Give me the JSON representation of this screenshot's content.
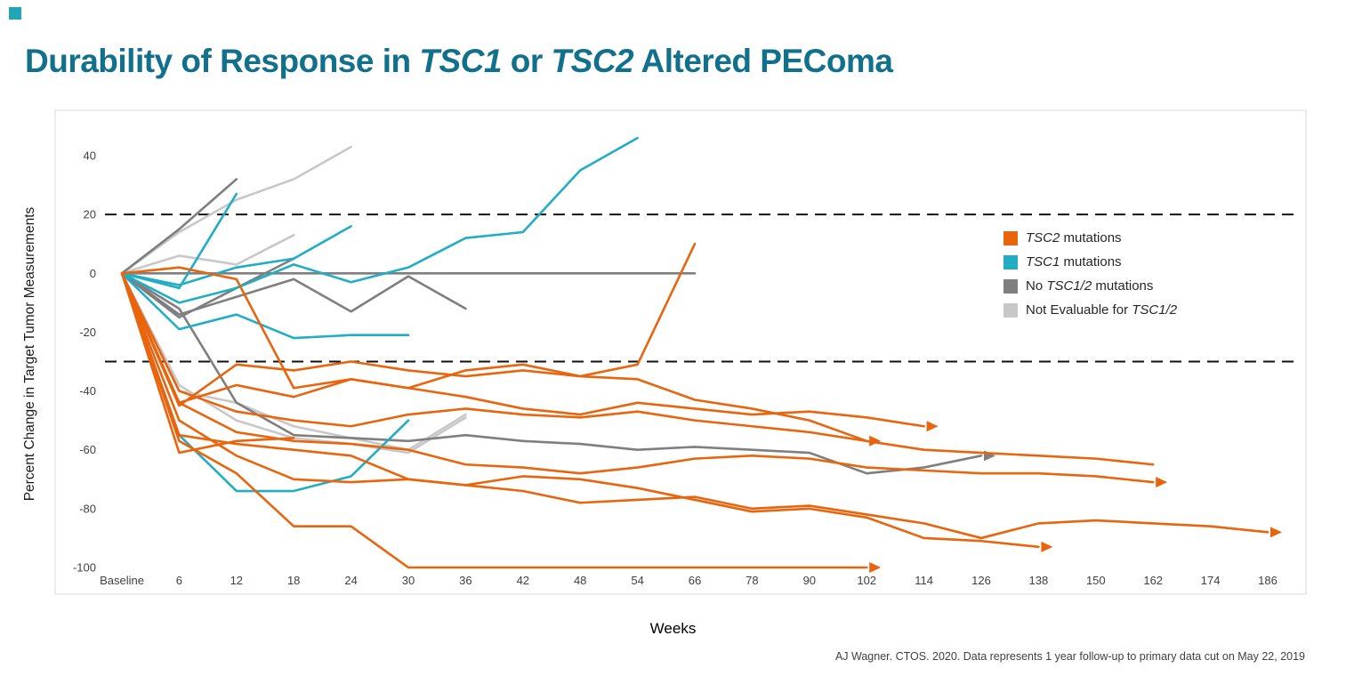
{
  "slide": {
    "title_segments": [
      {
        "text": "Durability of Response in ",
        "italic": false
      },
      {
        "text": "TSC1",
        "italic": true
      },
      {
        "text": " or ",
        "italic": false
      },
      {
        "text": "TSC2",
        "italic": true
      },
      {
        "text": " Altered PEComa",
        "italic": false
      }
    ],
    "title_color": "#11708C",
    "accent_color": "#23A5B8"
  },
  "footer": {
    "citation": "AJ Wagner. CTOS. 2020. Data represents 1 year follow-up to primary data cut on May 22, 2019"
  },
  "chart_data": {
    "type": "line",
    "title": "Durability of Response in TSC1 or TSC2 Altered PEComa",
    "xlabel": "Weeks",
    "ylabel": "Percent Change in Target Tumor Measurements",
    "x_tick_labels": [
      "Baseline",
      "6",
      "12",
      "18",
      "24",
      "30",
      "36",
      "42",
      "48",
      "54",
      "66",
      "78",
      "90",
      "102",
      "114",
      "126",
      "138",
      "150",
      "162",
      "174",
      "186"
    ],
    "y_ticks": [
      40,
      20,
      0,
      -20,
      -40,
      -60,
      -80,
      -100
    ],
    "ylim": [
      -105,
      50
    ],
    "reference_lines": [
      20,
      -30
    ],
    "grid": false,
    "legend_position": "right-inside",
    "colors": {
      "tsc2": "#E8650E",
      "tsc1": "#21AEC5",
      "no_mut": "#7F7F7F",
      "not_eval": "#C8C8C8"
    },
    "legend": [
      {
        "group": "tsc2",
        "segments": [
          {
            "text": "TSC2",
            "italic": true
          },
          {
            "text": " mutations",
            "italic": false
          }
        ]
      },
      {
        "group": "tsc1",
        "segments": [
          {
            "text": "TSC1",
            "italic": true
          },
          {
            "text": " mutations",
            "italic": false
          }
        ]
      },
      {
        "group": "no_mut",
        "segments": [
          {
            "text": "No ",
            "italic": false
          },
          {
            "text": "TSC1/2",
            "italic": true
          },
          {
            "text": " mutations",
            "italic": false
          }
        ]
      },
      {
        "group": "not_eval",
        "segments": [
          {
            "text": "Not Evaluable for ",
            "italic": false
          },
          {
            "text": "TSC1/2",
            "italic": true
          }
        ]
      }
    ],
    "series": [
      {
        "group": "tsc2",
        "weeks": [
          0,
          6,
          12,
          18,
          24,
          30,
          36,
          42,
          48,
          54,
          66
        ],
        "values": [
          0,
          2,
          -2,
          -39,
          -36,
          -39,
          -33,
          -31,
          -35,
          -31,
          10
        ],
        "arrow": false
      },
      {
        "group": "tsc2",
        "weeks": [
          0,
          6,
          12,
          18,
          24,
          30,
          36,
          42,
          48,
          54,
          66,
          78,
          90,
          102
        ],
        "values": [
          0,
          -45,
          -31,
          -33,
          -30,
          -33,
          -35,
          -33,
          -35,
          -36,
          -43,
          -46,
          -50,
          -57
        ],
        "arrow": true
      },
      {
        "group": "tsc2",
        "weeks": [
          0,
          6,
          12,
          18,
          24,
          30,
          36,
          42,
          48,
          54,
          66,
          78,
          90,
          102,
          114
        ],
        "values": [
          0,
          -44,
          -38,
          -42,
          -36,
          -39,
          -42,
          -46,
          -48,
          -44,
          -46,
          -48,
          -47,
          -49,
          -52
        ],
        "arrow": true
      },
      {
        "group": "tsc2",
        "weeks": [
          0,
          6,
          12,
          18,
          24,
          30,
          36,
          42,
          48,
          54,
          66,
          78,
          90,
          102,
          114,
          126,
          138
        ],
        "values": [
          0,
          -50,
          -62,
          -70,
          -71,
          -70,
          -72,
          -69,
          -70,
          -73,
          -77,
          -81,
          -80,
          -83,
          -90,
          -91,
          -93
        ],
        "arrow": true
      },
      {
        "group": "tsc2",
        "weeks": [
          0,
          6,
          12,
          18,
          24,
          30,
          36,
          42,
          48,
          54,
          66,
          78,
          90,
          102,
          114,
          126,
          138,
          150,
          162,
          174,
          186
        ],
        "values": [
          0,
          -55,
          -58,
          -60,
          -62,
          -70,
          -72,
          -74,
          -78,
          -77,
          -76,
          -80,
          -79,
          -82,
          -85,
          -90,
          -85,
          -84,
          -85,
          -86,
          -88
        ],
        "arrow": true
      },
      {
        "group": "tsc2",
        "weeks": [
          0,
          6,
          12,
          18,
          24,
          30,
          36,
          42,
          48,
          54,
          66,
          78,
          90,
          102
        ],
        "values": [
          0,
          -57,
          -68,
          -86,
          -86,
          -100,
          -100,
          -100,
          -100,
          -100,
          -100,
          -100,
          -100,
          -100
        ],
        "arrow": true
      },
      {
        "group": "tsc2",
        "weeks": [
          0,
          6,
          12,
          18,
          24,
          30,
          36,
          42,
          48,
          54,
          66,
          78,
          90,
          102,
          114,
          126,
          138,
          150,
          162
        ],
        "values": [
          0,
          -44,
          -54,
          -57,
          -58,
          -60,
          -65,
          -66,
          -68,
          -66,
          -63,
          -62,
          -63,
          -66,
          -67,
          -68,
          -68,
          -69,
          -71
        ],
        "arrow": true
      },
      {
        "group": "tsc2",
        "weeks": [
          0,
          6,
          12,
          18,
          24,
          30,
          36,
          42,
          48,
          54,
          66,
          78,
          90,
          102,
          114,
          126,
          138,
          150,
          162
        ],
        "values": [
          0,
          -40,
          -47,
          -50,
          -52,
          -48,
          -46,
          -48,
          -49,
          -47,
          -50,
          -52,
          -54,
          -57,
          -60,
          -61,
          -62,
          -63,
          -65
        ],
        "arrow": false
      },
      {
        "group": "tsc2",
        "weeks": [
          0,
          6,
          12,
          18
        ],
        "values": [
          0,
          -61,
          -57,
          -56
        ],
        "arrow": false
      },
      {
        "group": "tsc1",
        "weeks": [
          0,
          6,
          12
        ],
        "values": [
          0,
          -5,
          27
        ],
        "arrow": false
      },
      {
        "group": "tsc1",
        "weeks": [
          0,
          6,
          12,
          18,
          24,
          30
        ],
        "values": [
          0,
          -19,
          -14,
          -22,
          -21,
          -21
        ],
        "arrow": false
      },
      {
        "group": "tsc1",
        "weeks": [
          0,
          6,
          12,
          18,
          24,
          30
        ],
        "values": [
          0,
          -55,
          -74,
          -74,
          -69,
          -50
        ],
        "arrow": false
      },
      {
        "group": "tsc1",
        "weeks": [
          0,
          6,
          12,
          18,
          24,
          30,
          36,
          42,
          48,
          54
        ],
        "values": [
          0,
          -10,
          -5,
          3,
          -3,
          2,
          12,
          14,
          35,
          46
        ],
        "arrow": false
      },
      {
        "group": "tsc1",
        "weeks": [
          0,
          6,
          12,
          18,
          24
        ],
        "values": [
          0,
          -4,
          2,
          5,
          16
        ],
        "arrow": false
      },
      {
        "group": "no_mut",
        "weeks": [
          0,
          6,
          12,
          18,
          24,
          30,
          36,
          42,
          48,
          54,
          66
        ],
        "values": [
          0,
          0,
          0,
          0,
          0,
          0,
          0,
          0,
          0,
          0,
          0
        ],
        "arrow": false
      },
      {
        "group": "no_mut",
        "weeks": [
          0,
          6,
          12
        ],
        "values": [
          0,
          15,
          32
        ],
        "arrow": false
      },
      {
        "group": "no_mut",
        "weeks": [
          0,
          6,
          12,
          18,
          24,
          30,
          36
        ],
        "values": [
          0,
          -14,
          -8,
          -2,
          -13,
          -1,
          -12
        ],
        "arrow": false
      },
      {
        "group": "no_mut",
        "weeks": [
          0,
          6,
          12,
          18,
          24,
          30,
          36,
          42,
          48,
          54,
          66,
          78,
          90,
          102,
          114,
          126
        ],
        "values": [
          0,
          -12,
          -44,
          -55,
          -56,
          -57,
          -55,
          -57,
          -58,
          -60,
          -59,
          -60,
          -61,
          -68,
          -66,
          -62
        ],
        "arrow": true
      },
      {
        "group": "no_mut",
        "weeks": [
          0,
          6,
          12,
          18
        ],
        "values": [
          0,
          -15,
          -5,
          5
        ],
        "arrow": false
      },
      {
        "group": "not_eval",
        "weeks": [
          0,
          6,
          12,
          18,
          24
        ],
        "values": [
          0,
          14,
          25,
          32,
          43
        ],
        "arrow": false
      },
      {
        "group": "not_eval",
        "weeks": [
          0,
          6,
          12,
          18
        ],
        "values": [
          0,
          6,
          3,
          13
        ],
        "arrow": false
      },
      {
        "group": "not_eval",
        "weeks": [
          0,
          6,
          12,
          18,
          24,
          30,
          36
        ],
        "values": [
          0,
          -40,
          -44,
          -52,
          -56,
          -60,
          -48
        ],
        "arrow": false
      },
      {
        "group": "not_eval",
        "weeks": [
          0,
          6,
          12,
          18,
          24,
          30,
          36
        ],
        "values": [
          0,
          -38,
          -50,
          -56,
          -58,
          -61,
          -49
        ],
        "arrow": false
      }
    ]
  }
}
